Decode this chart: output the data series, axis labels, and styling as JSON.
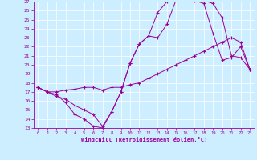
{
  "xlabel": "Windchill (Refroidissement éolien,°C)",
  "bg_color": "#cceeff",
  "grid_color": "#ffffff",
  "line_color": "#990099",
  "xlim": [
    -0.5,
    23.5
  ],
  "ylim": [
    13,
    27
  ],
  "xticks": [
    0,
    1,
    2,
    3,
    4,
    5,
    6,
    7,
    8,
    9,
    10,
    11,
    12,
    13,
    14,
    15,
    16,
    17,
    18,
    19,
    20,
    21,
    22,
    23
  ],
  "yticks": [
    13,
    14,
    15,
    16,
    17,
    18,
    19,
    20,
    21,
    22,
    23,
    24,
    25,
    26,
    27
  ],
  "line1_x": [
    0,
    1,
    2,
    3,
    4,
    5,
    6,
    7,
    8,
    9,
    10,
    11,
    12,
    13,
    14,
    15,
    16,
    17,
    18,
    19,
    20,
    21,
    22,
    23
  ],
  "line1_y": [
    17.5,
    17.0,
    16.7,
    15.8,
    14.5,
    14.0,
    13.2,
    13.0,
    14.8,
    17.0,
    20.2,
    22.3,
    23.2,
    23.0,
    24.5,
    27.2,
    27.3,
    27.2,
    27.1,
    26.8,
    25.2,
    21.0,
    20.8,
    19.5
  ],
  "line2_x": [
    0,
    1,
    2,
    3,
    4,
    5,
    6,
    7,
    8,
    9,
    10,
    11,
    12,
    13,
    14,
    15,
    16,
    17,
    18,
    19,
    20,
    21,
    22,
    23
  ],
  "line2_y": [
    17.5,
    17.0,
    17.0,
    17.2,
    17.3,
    17.5,
    17.5,
    17.2,
    17.5,
    17.5,
    17.8,
    18.0,
    18.5,
    19.0,
    19.5,
    20.0,
    20.5,
    21.0,
    21.5,
    22.0,
    22.5,
    23.0,
    22.5,
    19.5
  ],
  "line3_x": [
    0,
    1,
    2,
    3,
    4,
    5,
    6,
    7,
    8,
    9,
    10,
    11,
    12,
    13,
    14,
    15,
    16,
    17,
    18,
    19,
    20,
    21,
    22,
    23
  ],
  "line3_y": [
    17.5,
    17.0,
    16.5,
    16.2,
    15.5,
    15.0,
    14.5,
    13.2,
    14.8,
    17.0,
    20.2,
    22.3,
    23.2,
    25.8,
    27.0,
    27.2,
    27.3,
    27.1,
    26.8,
    23.5,
    20.5,
    20.8,
    22.0,
    19.5
  ]
}
